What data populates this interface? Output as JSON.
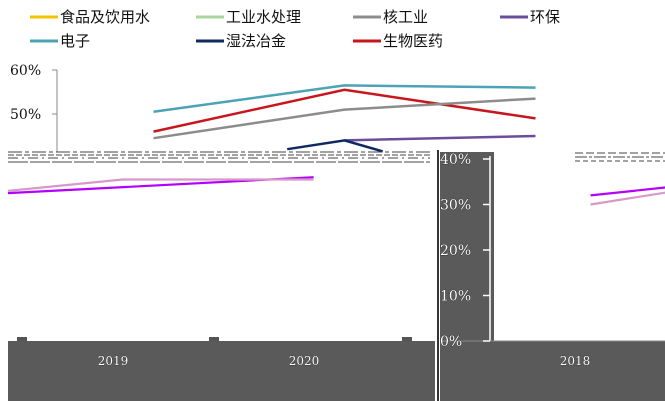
{
  "chart_data": {
    "type": "line",
    "legend": [
      {
        "name": "食品及饮用水",
        "color": "#f5c400"
      },
      {
        "name": "工业水处理",
        "color": "#a6d89b"
      },
      {
        "name": "核工业",
        "color": "#8c8c8c"
      },
      {
        "name": "环保",
        "color": "#6b4d9b"
      },
      {
        "name": "电子",
        "color": "#4ba3b5"
      },
      {
        "name": "湿法冶金",
        "color": "#0f2a60"
      },
      {
        "name": "生物医药",
        "color": "#c8161d"
      }
    ],
    "y_ticks_top": [
      "60%",
      "50%"
    ],
    "y_ticks_panel": [
      "40%",
      "30%",
      "20%",
      "10%",
      "0%"
    ],
    "categories_visible": [
      "2019",
      "2020",
      "2018"
    ],
    "ylim": [
      0,
      60
    ],
    "series": [
      {
        "name": "电子",
        "color": "#4ba3b5",
        "x": [
          0.5,
          1.5,
          2.5
        ],
        "values": [
          50.5,
          56.5,
          56
        ]
      },
      {
        "name": "生物医药",
        "color": "#c8161d",
        "x": [
          0.5,
          1.5,
          2.5
        ],
        "values": [
          46,
          55.5,
          49
        ]
      },
      {
        "name": "核工业",
        "color": "#8c8c8c",
        "x": [
          0.5,
          1.5,
          2.5
        ],
        "values": [
          44.5,
          51,
          53.5
        ]
      },
      {
        "name": "环保",
        "color": "#6b4d9b",
        "x": [
          1.5,
          2.5
        ],
        "values": [
          44,
          45
        ]
      },
      {
        "name": "湿法冶金",
        "color": "#0f2a60",
        "x": [
          1.2,
          1.5,
          1.7
        ],
        "values": [
          42,
          44,
          41.5
        ]
      }
    ],
    "overlay_segments": [
      {
        "color": "#b400ff",
        "points": [
          [
            0,
            32.5
          ],
          [
            1.6,
            36
          ]
        ]
      },
      {
        "color": "#d799c9",
        "points": [
          [
            0,
            33
          ],
          [
            0.6,
            35.5
          ],
          [
            1.6,
            35.5
          ]
        ]
      },
      {
        "color": "#b400ff",
        "points": [
          [
            3.05,
            32
          ],
          [
            3.5,
            34
          ]
        ]
      },
      {
        "color": "#d799c9",
        "points": [
          [
            3.05,
            30
          ],
          [
            3.5,
            33
          ]
        ]
      }
    ]
  }
}
